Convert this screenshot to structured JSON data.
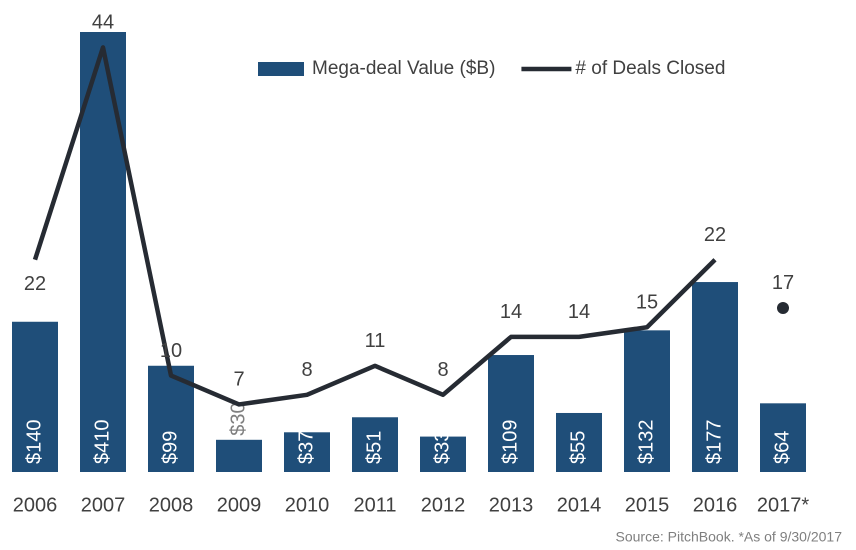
{
  "chart_data": {
    "type": "bar_line",
    "categories": [
      "2006",
      "2007",
      "2008",
      "2009",
      "2010",
      "2011",
      "2012",
      "2013",
      "2014",
      "2015",
      "2016",
      "2017*"
    ],
    "series": [
      {
        "name": "Mega-deal Value ($B)",
        "color": "#1f4e79",
        "type": "bar",
        "values": [
          140,
          410,
          99,
          30,
          37,
          51,
          33,
          109,
          55,
          132,
          177,
          64
        ],
        "value_labels": [
          "$140",
          "$410",
          "$99",
          "$30",
          "$37",
          "$51",
          "$33",
          "$109",
          "$55",
          "$132",
          "$177",
          "$64"
        ]
      },
      {
        "name": "# of Deals Closed",
        "color": "#262b33",
        "type": "line",
        "axis": "y2",
        "values": [
          22,
          44,
          10,
          7,
          8,
          11,
          8,
          14,
          14,
          15,
          22,
          17
        ],
        "last_point_separate": true
      }
    ],
    "ylim": [
      0,
      410
    ],
    "y2lim": [
      0,
      45.6
    ],
    "legend": "top-right",
    "source": "Source: PitchBook. *As of 9/30/2017"
  }
}
